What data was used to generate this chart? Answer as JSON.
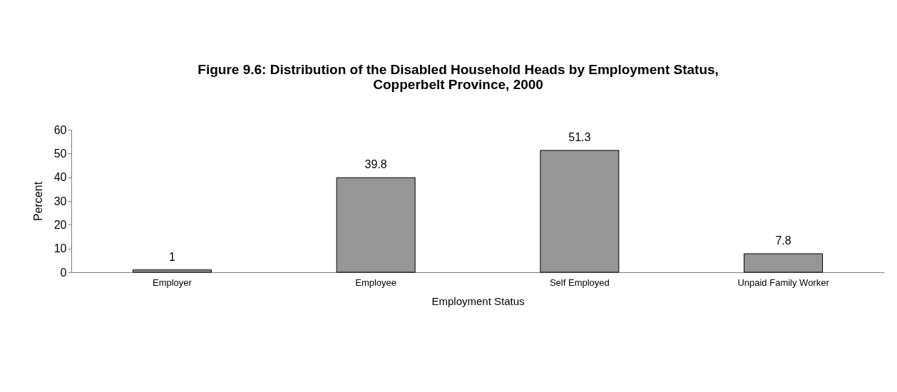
{
  "chart_data": {
    "type": "bar",
    "title": [
      "Figure 9.6: Distribution of the Disabled Household Heads by Employment Status,",
      "Copperbelt Province, 2000"
    ],
    "xlabel": "Employment Status",
    "ylabel": "Percent",
    "categories": [
      "Employer",
      "Employee",
      "Self Employed",
      "Unpaid Family Worker"
    ],
    "values": [
      1,
      39.8,
      51.3,
      7.8
    ],
    "color": "#969696",
    "ylim": [
      0,
      60
    ],
    "yticks": [
      0,
      10,
      20,
      30,
      40,
      50,
      60
    ],
    "grid": false,
    "data_labels": true
  }
}
